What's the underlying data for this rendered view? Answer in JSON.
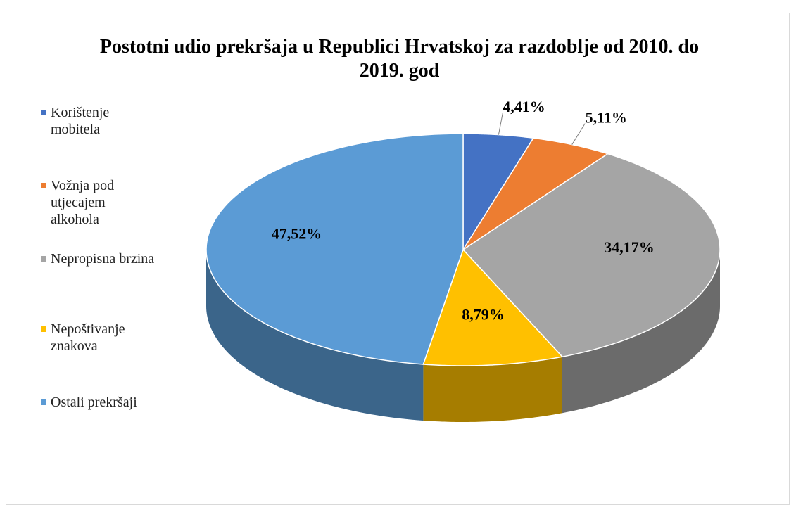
{
  "chart_data": {
    "type": "pie3d",
    "title": "Postotni udio prekršaja u Republici Hrvatskoj za razdoblje od 2010. do 2019. god",
    "categories": [
      "Korištenje mobitela",
      "Vožnja pod utjecajem alkohola",
      "Nepropisna brzina",
      "Nepoštivanje znakova",
      "Ostali prekršaji"
    ],
    "values": [
      4.41,
      5.11,
      34.17,
      8.79,
      47.52
    ],
    "value_labels": [
      "4,41%",
      "5,11%",
      "34,17%",
      "8,79%",
      "47,52%"
    ],
    "colors": [
      "#4472c4",
      "#ed7d31",
      "#a5a5a5",
      "#ffc000",
      "#5b9bd5"
    ],
    "legend": "left"
  }
}
